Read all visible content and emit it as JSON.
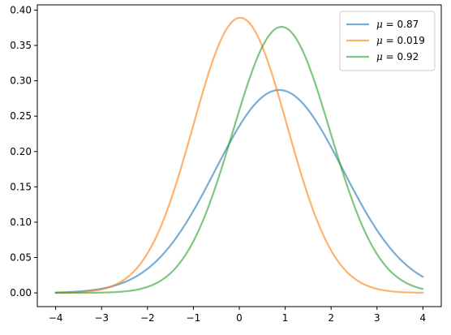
{
  "chart_data": {
    "type": "line",
    "title": "",
    "xlabel": "",
    "ylabel": "",
    "xlim": [
      -4.4,
      4.4
    ],
    "ylim": [
      -0.0194,
      0.4074
    ],
    "x_ticks": [
      -4,
      -3,
      -2,
      -1,
      0,
      1,
      2,
      3,
      4
    ],
    "x_tick_labels": [
      "−4",
      "−3",
      "−2",
      "−1",
      "0",
      "1",
      "2",
      "3",
      "4"
    ],
    "y_ticks": [
      0.0,
      0.05,
      0.1,
      0.15,
      0.2,
      0.25,
      0.3,
      0.35,
      0.4
    ],
    "y_tick_labels": [
      "0.00",
      "0.05",
      "0.10",
      "0.15",
      "0.20",
      "0.25",
      "0.30",
      "0.35",
      "0.40"
    ],
    "grid": false,
    "legend_position": "top-right",
    "x_range": [
      -4,
      4
    ],
    "series": [
      {
        "name": "= 0.87",
        "mu_symbol": "μ",
        "mu": 0.87,
        "sigma": 1.39,
        "color": "#1f77b4",
        "x": [
          -4,
          -3,
          -2,
          -1,
          0,
          1,
          2,
          3,
          4
        ],
        "y": [
          0.0006,
          0.0061,
          0.0338,
          0.1161,
          0.2339,
          0.2872,
          0.2121,
          0.0929,
          0.0226
        ]
      },
      {
        "name": "= 0.019",
        "mu_symbol": "μ",
        "mu": 0.019,
        "sigma": 1.025,
        "color": "#ff7f0e",
        "x": [
          -4,
          -3,
          -2,
          -1,
          0,
          1,
          2,
          3,
          4
        ],
        "y": [
          0.0001,
          0.0053,
          0.0567,
          0.2374,
          0.3891,
          0.2479,
          0.0606,
          0.0057,
          0.0002
        ]
      },
      {
        "name": "= 0.92",
        "mu_symbol": "μ",
        "mu": 0.92,
        "sigma": 1.06,
        "color": "#2ca02c",
        "x": [
          -4,
          -3,
          -2,
          -1,
          0,
          1,
          2,
          3,
          4
        ],
        "y": [
          0.0,
          0.0004,
          0.0084,
          0.0732,
          0.259,
          0.3752,
          0.223,
          0.0546,
          0.0054
        ]
      }
    ]
  }
}
